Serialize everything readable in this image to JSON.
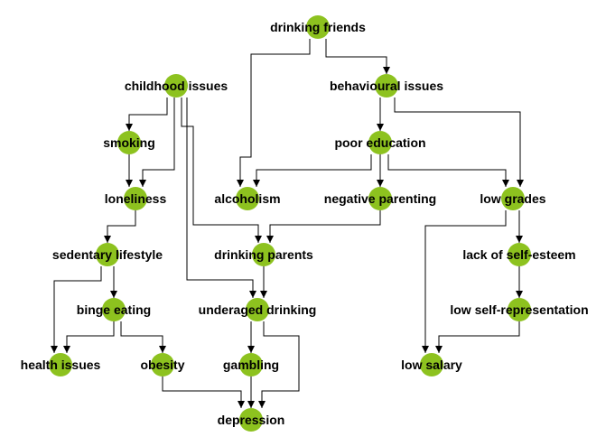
{
  "colors": {
    "node": "#8dc21f",
    "edge": "#000000",
    "text": "#000000"
  },
  "nodes": [
    {
      "id": "drinking_friends",
      "label": "drinking friends"
    },
    {
      "id": "childhood_issues",
      "label": "childhood issues"
    },
    {
      "id": "behavioural_issues",
      "label": "behavioural issues"
    },
    {
      "id": "smoking",
      "label": "smoking"
    },
    {
      "id": "poor_education",
      "label": "poor education"
    },
    {
      "id": "loneliness",
      "label": "loneliness"
    },
    {
      "id": "alcoholism",
      "label": "alcoholism"
    },
    {
      "id": "negative_parenting",
      "label": "negative parenting"
    },
    {
      "id": "low_grades",
      "label": "low grades"
    },
    {
      "id": "sedentary_lifestyle",
      "label": "sedentary lifestyle"
    },
    {
      "id": "drinking_parents",
      "label": "drinking parents"
    },
    {
      "id": "lack_of_self_esteem",
      "label": "lack of self-esteem"
    },
    {
      "id": "binge_eating",
      "label": "binge eating"
    },
    {
      "id": "underaged_drinking",
      "label": "underaged drinking"
    },
    {
      "id": "low_self_representation",
      "label": "low self-representation"
    },
    {
      "id": "health_issues",
      "label": "health issues"
    },
    {
      "id": "obesity",
      "label": "obesity"
    },
    {
      "id": "gambling",
      "label": "gambling"
    },
    {
      "id": "low_salary",
      "label": "low salary"
    },
    {
      "id": "depression",
      "label": "depression"
    }
  ],
  "edges": [
    {
      "from": "drinking_friends",
      "to": "behavioural_issues"
    },
    {
      "from": "drinking_friends",
      "to": "alcoholism"
    },
    {
      "from": "childhood_issues",
      "to": "smoking"
    },
    {
      "from": "childhood_issues",
      "to": "loneliness"
    },
    {
      "from": "childhood_issues",
      "to": "drinking_parents"
    },
    {
      "from": "childhood_issues",
      "to": "underaged_drinking"
    },
    {
      "from": "behavioural_issues",
      "to": "poor_education"
    },
    {
      "from": "behavioural_issues",
      "to": "low_grades"
    },
    {
      "from": "smoking",
      "to": "loneliness"
    },
    {
      "from": "poor_education",
      "to": "alcoholism"
    },
    {
      "from": "poor_education",
      "to": "negative_parenting"
    },
    {
      "from": "poor_education",
      "to": "low_grades"
    },
    {
      "from": "loneliness",
      "to": "sedentary_lifestyle"
    },
    {
      "from": "negative_parenting",
      "to": "drinking_parents"
    },
    {
      "from": "low_grades",
      "to": "lack_of_self_esteem"
    },
    {
      "from": "low_grades",
      "to": "low_salary"
    },
    {
      "from": "sedentary_lifestyle",
      "to": "binge_eating"
    },
    {
      "from": "sedentary_lifestyle",
      "to": "health_issues"
    },
    {
      "from": "drinking_parents",
      "to": "underaged_drinking"
    },
    {
      "from": "lack_of_self_esteem",
      "to": "low_self_representation"
    },
    {
      "from": "binge_eating",
      "to": "health_issues"
    },
    {
      "from": "binge_eating",
      "to": "obesity"
    },
    {
      "from": "underaged_drinking",
      "to": "gambling"
    },
    {
      "from": "underaged_drinking",
      "to": "depression"
    },
    {
      "from": "low_self_representation",
      "to": "low_salary"
    },
    {
      "from": "obesity",
      "to": "depression"
    },
    {
      "from": "gambling",
      "to": "depression"
    }
  ]
}
